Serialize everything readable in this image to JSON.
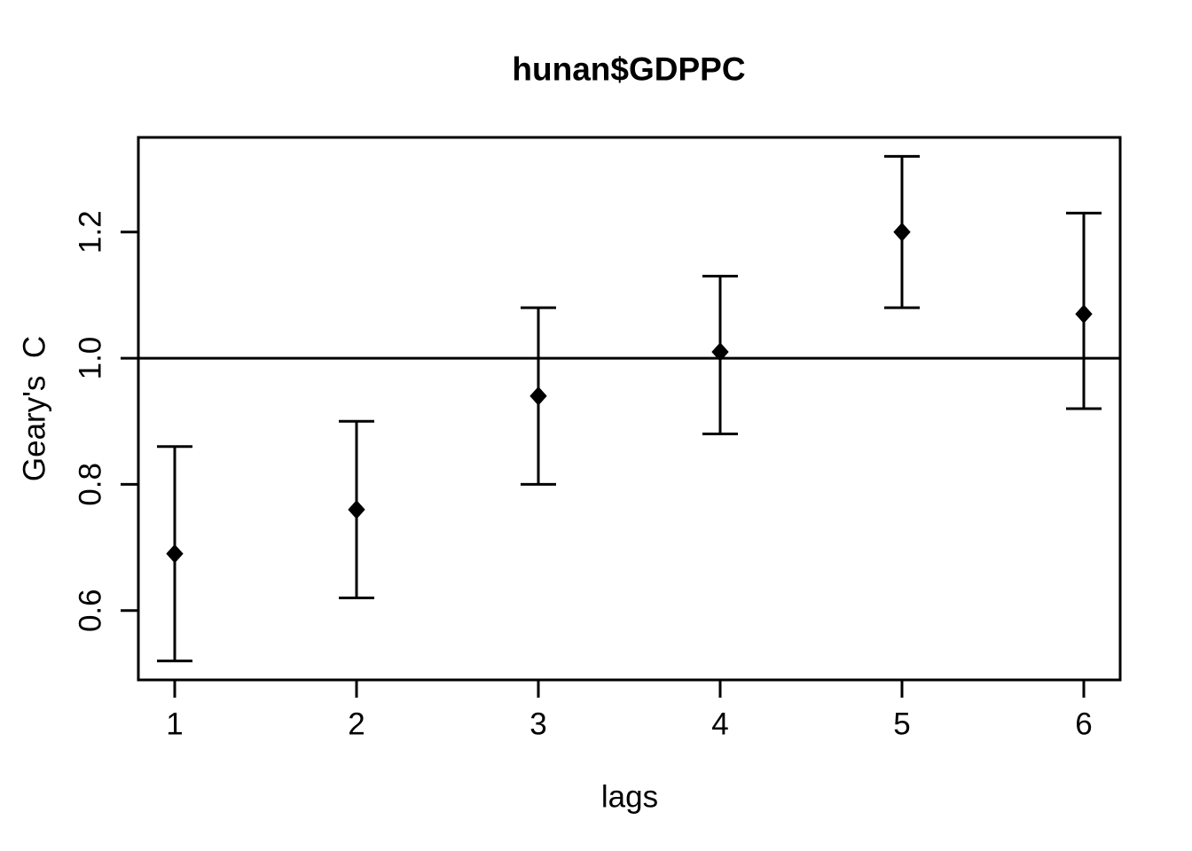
{
  "chart_data": {
    "type": "scatter",
    "subtype": "spatial-correlogram-with-error-bars",
    "title": "hunan$GDPPC",
    "xlabel": "lags",
    "ylabel": "Geary's  C",
    "x": [
      1,
      2,
      3,
      4,
      5,
      6
    ],
    "x_ticks": [
      "1",
      "2",
      "3",
      "4",
      "5",
      "6"
    ],
    "y_ticks": [
      "0.6",
      "0.8",
      "1.0",
      "1.2"
    ],
    "estimates": [
      0.69,
      0.76,
      0.94,
      1.01,
      1.2,
      1.07
    ],
    "ci_lower": [
      0.52,
      0.62,
      0.8,
      0.88,
      1.08,
      0.92
    ],
    "ci_upper": [
      0.86,
      0.9,
      1.08,
      1.13,
      1.32,
      1.23
    ],
    "reference_line_y": 1.0,
    "xlim": [
      0.8,
      6.2
    ],
    "ylim": [
      0.49,
      1.35
    ],
    "grid": false,
    "legend": "none",
    "point_shape": "filled-diamond",
    "color": "#000000",
    "background": "#ffffff"
  }
}
